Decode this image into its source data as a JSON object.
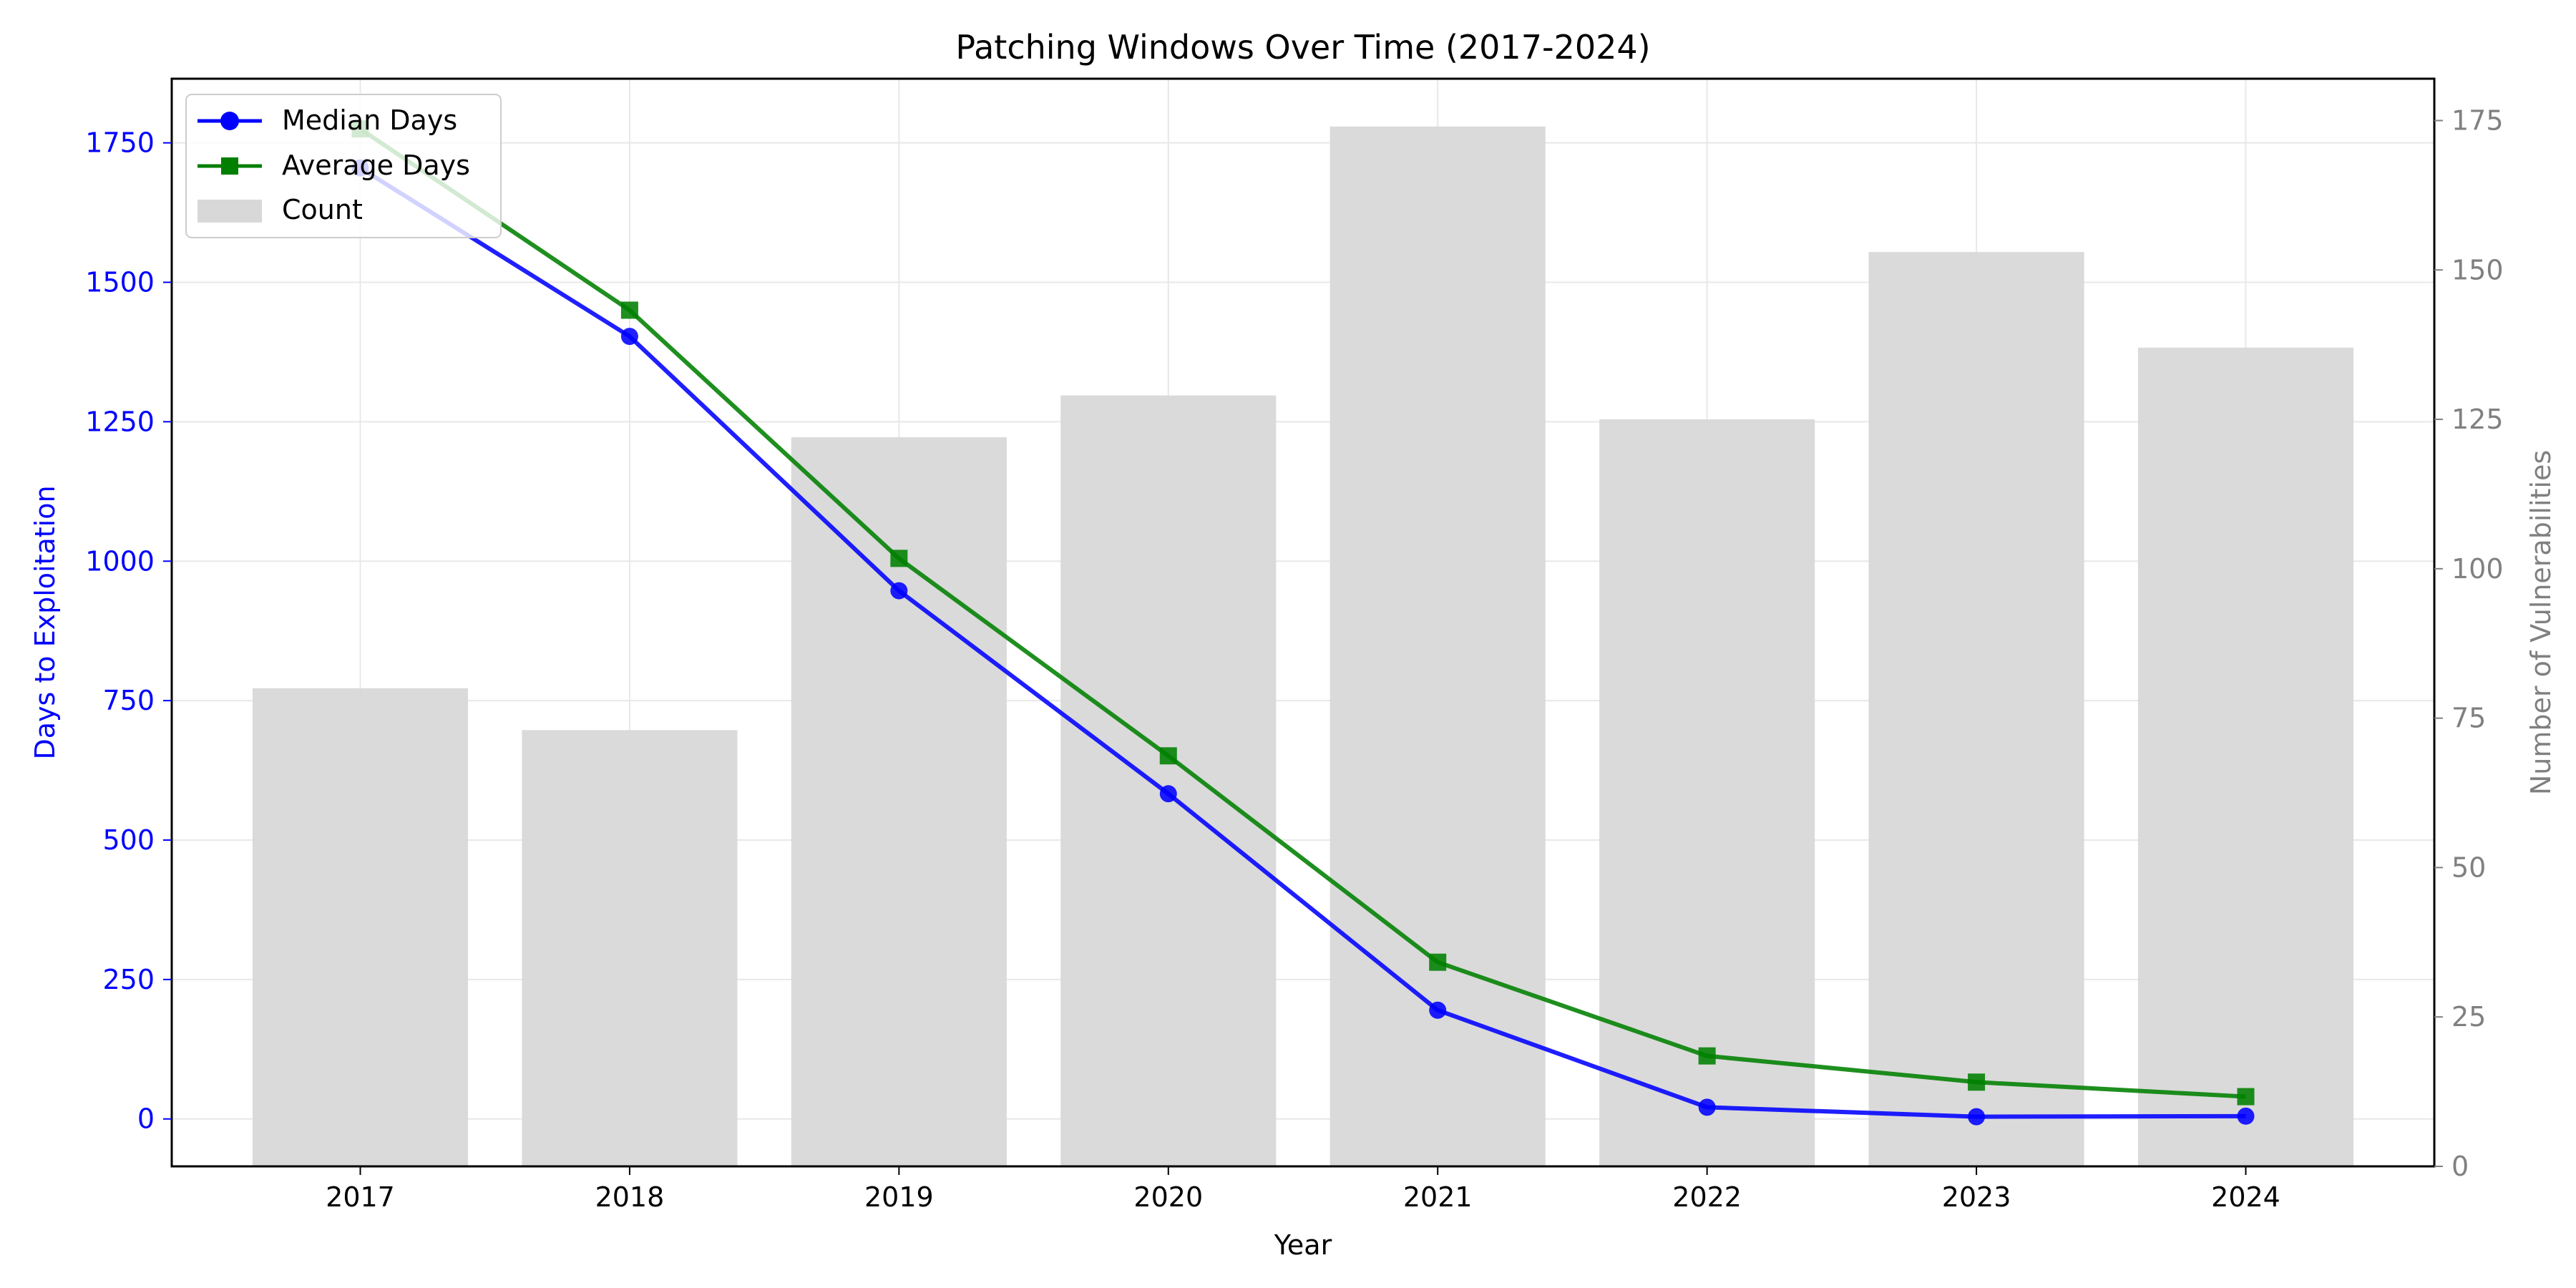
{
  "chart_data": {
    "type": "bar+line",
    "title": "Patching Windows Over Time (2017-2024)",
    "xlabel": "Year",
    "ylabel_left": "Days to Exploitation",
    "ylabel_right": "Number of Vulnerabilities",
    "categories": [
      "2017",
      "2018",
      "2019",
      "2020",
      "2021",
      "2022",
      "2023",
      "2024"
    ],
    "ylim_left": [
      -85,
      1865
    ],
    "ylim_right": [
      0,
      182
    ],
    "yticks_left": [
      0,
      250,
      500,
      750,
      1000,
      1250,
      1500,
      1750
    ],
    "yticks_right": [
      0,
      25,
      50,
      75,
      100,
      125,
      150,
      175
    ],
    "grid": true,
    "legend_position": "top-left",
    "series": [
      {
        "name": "Median Days",
        "type": "line",
        "axis": "left",
        "marker": "circle",
        "color": "#0000ff",
        "values": [
          1705,
          1403,
          947,
          583,
          195,
          21,
          4,
          5
        ]
      },
      {
        "name": "Average Days",
        "type": "line",
        "axis": "left",
        "marker": "square",
        "color": "#007f00",
        "values": [
          1775,
          1450,
          1005,
          651,
          281,
          113,
          66,
          40
        ]
      },
      {
        "name": "Count",
        "type": "bar",
        "axis": "right",
        "color": "#d8d8d8",
        "values": [
          80,
          73,
          122,
          129,
          174,
          125,
          153,
          137
        ]
      }
    ]
  },
  "colors": {
    "left_axis": "#0000ff",
    "right_axis": "#808080",
    "grid": "#e8e8e8"
  }
}
